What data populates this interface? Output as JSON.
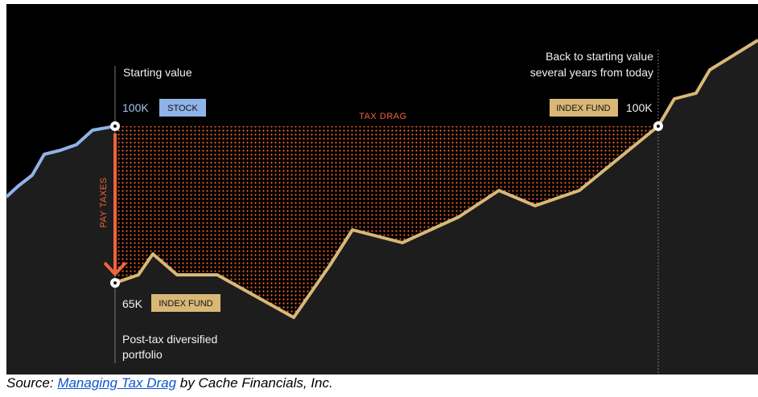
{
  "annotations": {
    "start_label": "Starting value",
    "start_value": "100K",
    "start_tag": "STOCK",
    "end_label_lines": [
      "Back to starting value",
      "several years from today"
    ],
    "end_tag": "INDEX FUND",
    "end_value": "100K",
    "area_label": "TAX DRAG",
    "arrow_label": "PAY TAXES",
    "post_value": "65K",
    "post_tag": "INDEX FUND",
    "post_label_lines": [
      "Post-tax diversified",
      "portfolio"
    ]
  },
  "caption": {
    "prefix": "Source: ",
    "link": "Managing Tax Drag",
    "suffix": " by Cache Financials, Inc."
  }
}
